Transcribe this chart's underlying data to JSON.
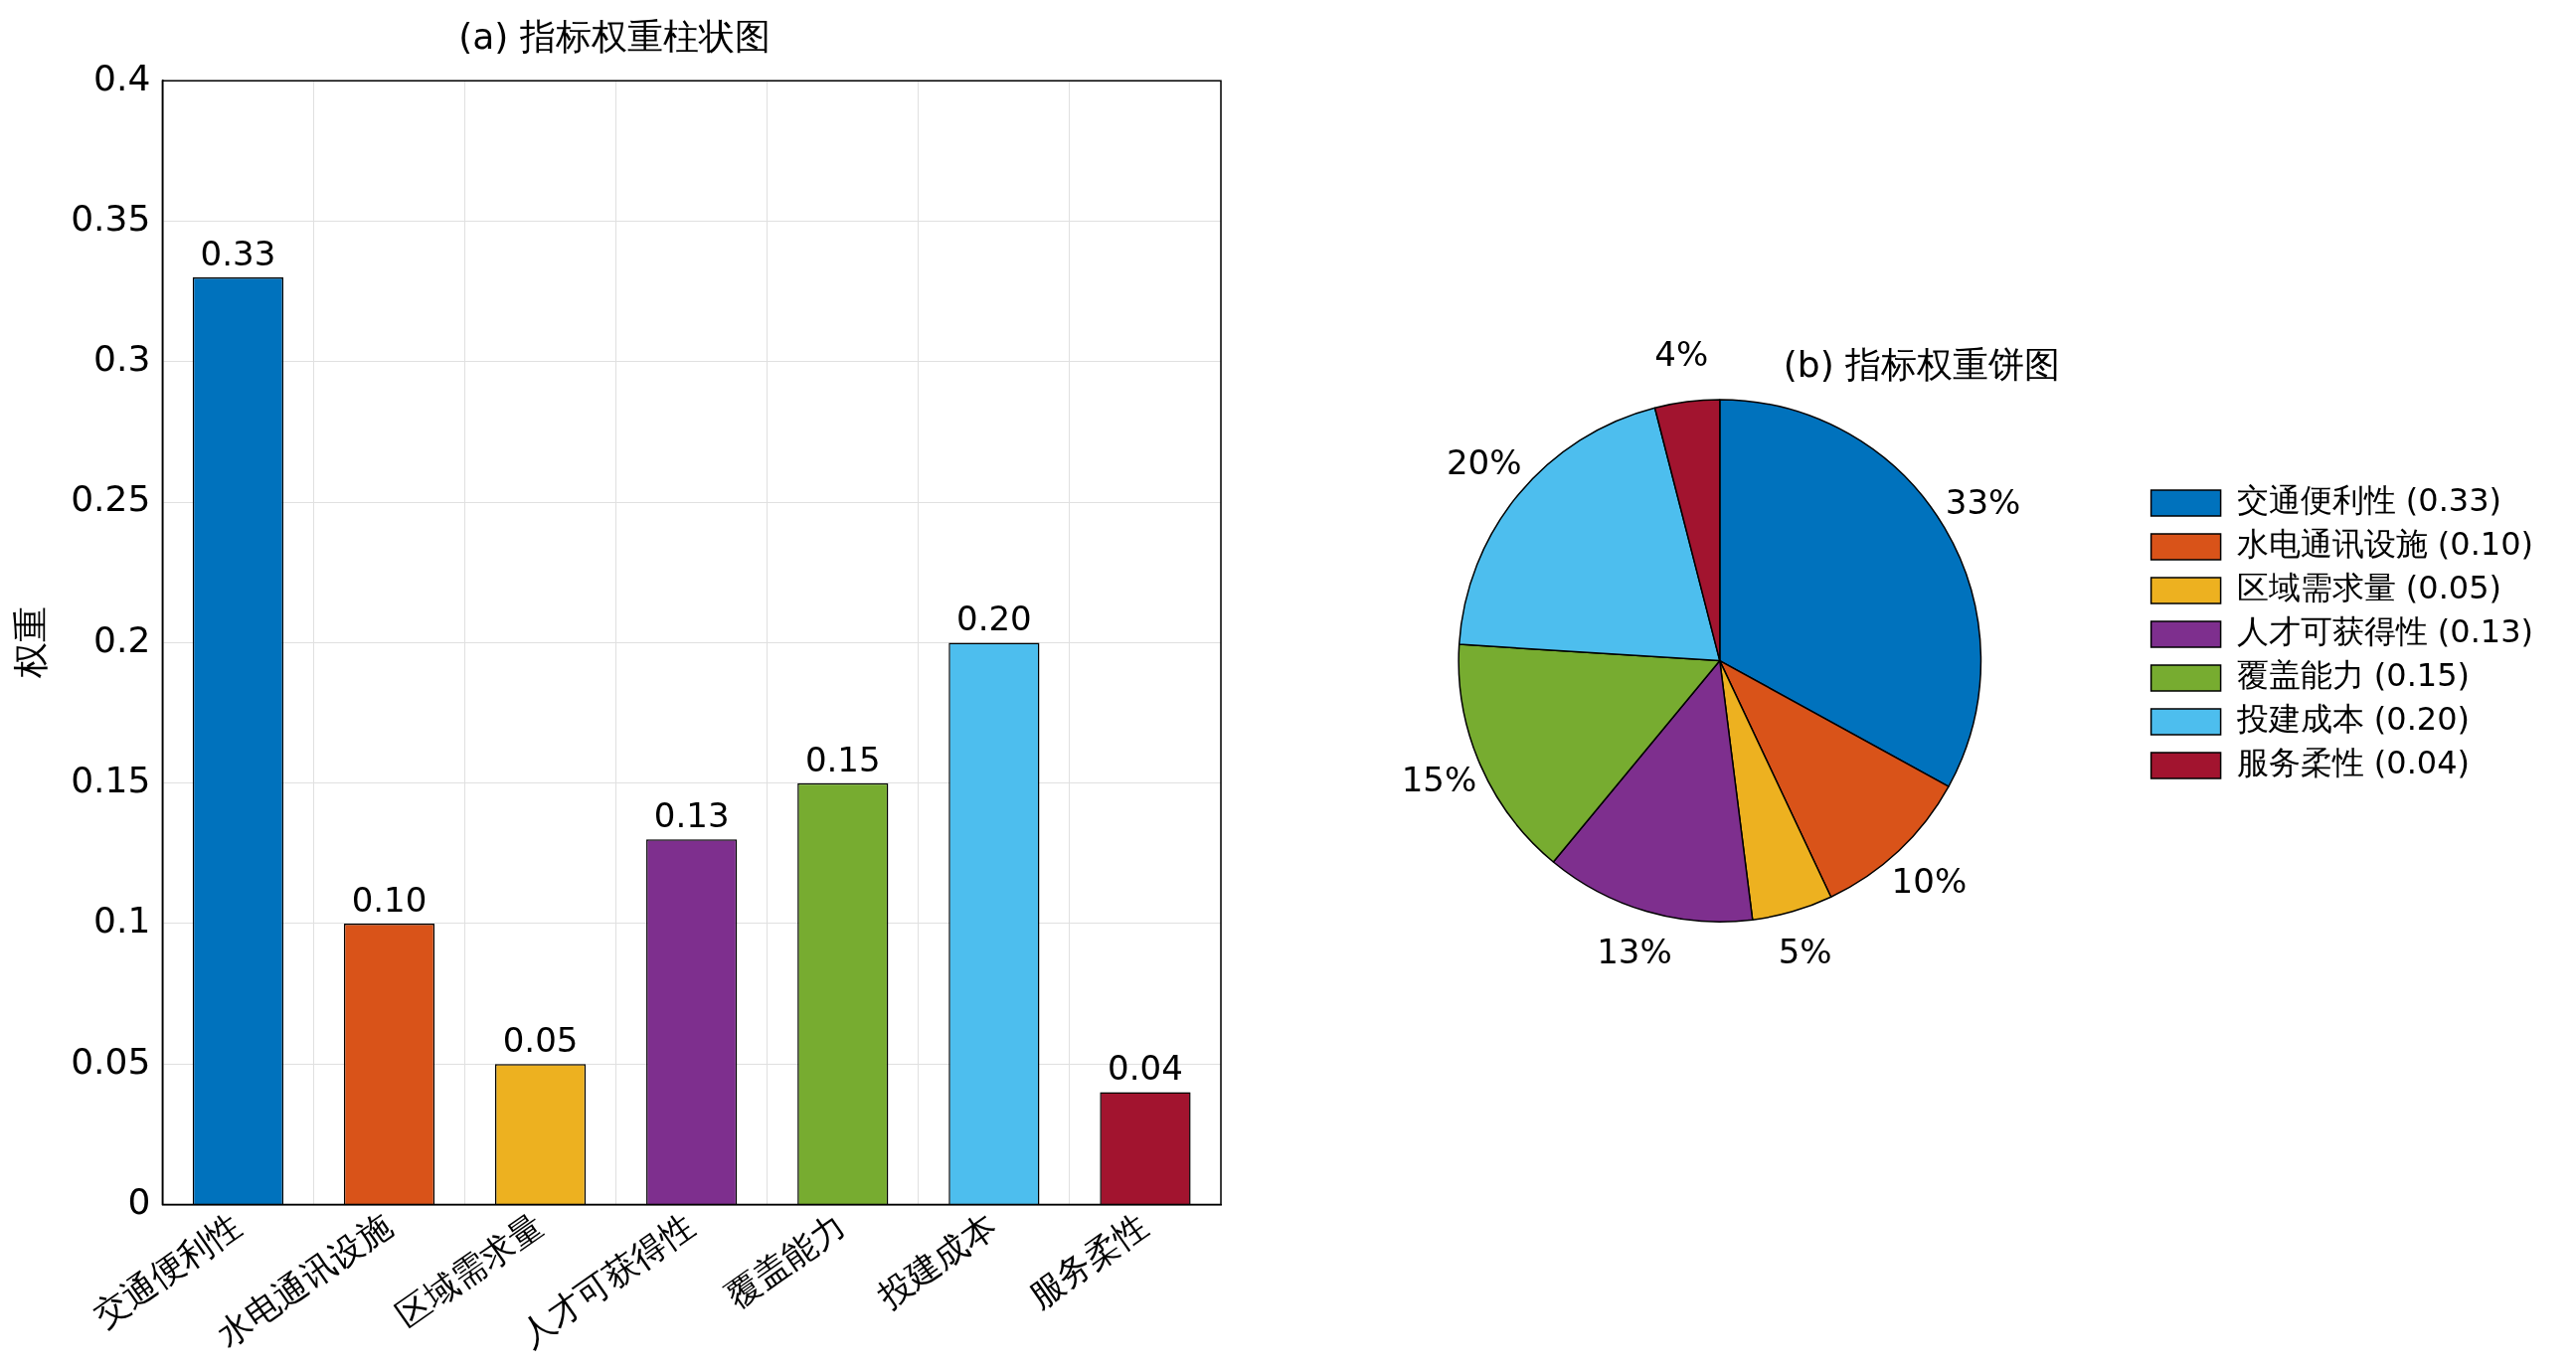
{
  "chart_data": [
    {
      "type": "bar",
      "title": "(a) 指标权重柱状图",
      "ylabel": "权重",
      "categories": [
        "交通便利性",
        "水电通讯设施",
        "区域需求量",
        "人才可获得性",
        "覆盖能力",
        "投建成本",
        "服务柔性"
      ],
      "values": [
        0.33,
        0.1,
        0.05,
        0.13,
        0.15,
        0.2,
        0.04
      ],
      "value_labels": [
        "0.33",
        "0.10",
        "0.05",
        "0.13",
        "0.15",
        "0.20",
        "0.04"
      ],
      "colors": [
        "#0072bd",
        "#d95319",
        "#edb120",
        "#7e2f8e",
        "#77ac30",
        "#4dbeee",
        "#a2142f"
      ],
      "ylim": [
        0,
        0.4
      ],
      "yticks": [
        0,
        0.05,
        0.1,
        0.15,
        0.2,
        0.25,
        0.3,
        0.35,
        0.4
      ],
      "grid": true
    },
    {
      "type": "pie",
      "title": "(b) 指标权重饼图",
      "categories": [
        "交通便利性 (0.33)",
        "水电通讯设施 (0.10)",
        "区域需求量 (0.05)",
        "人才可获得性 (0.13)",
        "覆盖能力 (0.15)",
        "投建成本 (0.20)",
        "服务柔性 (0.04)"
      ],
      "values": [
        33,
        10,
        5,
        13,
        15,
        20,
        4
      ],
      "value_labels": [
        "33%",
        "10%",
        "5%",
        "13%",
        "15%",
        "20%",
        "4%"
      ],
      "colors": [
        "#0072bd",
        "#d95319",
        "#edb120",
        "#7e2f8e",
        "#77ac30",
        "#4dbeee",
        "#a2142f"
      ],
      "legend": "right"
    }
  ]
}
